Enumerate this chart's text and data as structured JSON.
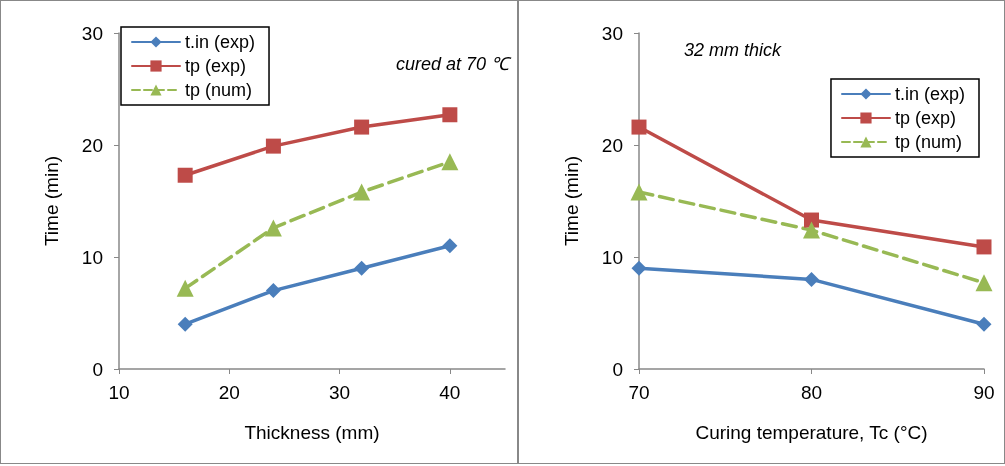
{
  "chart_data": [
    {
      "type": "line",
      "xlabel": "Thickness (mm)",
      "ylabel": "Time (min)",
      "x": [
        16,
        24,
        32,
        40
      ],
      "xlim": [
        10,
        45
      ],
      "xticks": [
        10,
        20,
        30,
        40
      ],
      "ylim": [
        0,
        30
      ],
      "yticks": [
        0,
        10,
        20,
        30
      ],
      "grid": false,
      "legend": "top left",
      "annotations": [
        "cured at 70 ℃"
      ],
      "series": [
        {
          "name": "t.in (exp)",
          "color": "#4a7ebb",
          "marker": "diamond",
          "line_style": "solid",
          "values": [
            4,
            7,
            9,
            11
          ]
        },
        {
          "name": "tp (exp)",
          "color": "#be4b48",
          "marker": "square",
          "line_style": "solid",
          "values": [
            17.3,
            19.9,
            21.6,
            22.7
          ]
        },
        {
          "name": "tp (num)",
          "color": "#98b954",
          "marker": "triangle",
          "line_style": "dashed",
          "values": [
            7.2,
            12.6,
            15.8,
            18.5
          ]
        }
      ]
    },
    {
      "type": "line",
      "xlabel": "Curing temperature, Tc (°C)",
      "ylabel": "Time (min)",
      "x": [
        70,
        80,
        90
      ],
      "xlim": [
        70,
        90
      ],
      "xticks": [
        70,
        80,
        90
      ],
      "ylim": [
        0,
        30
      ],
      "yticks": [
        0,
        10,
        20,
        30
      ],
      "grid": false,
      "legend": "top right",
      "annotations": [
        "32 mm thick"
      ],
      "series": [
        {
          "name": "t.in (exp)",
          "color": "#4a7ebb",
          "marker": "diamond",
          "line_style": "solid",
          "values": [
            9,
            8,
            4
          ]
        },
        {
          "name": "tp (exp)",
          "color": "#be4b48",
          "marker": "square",
          "line_style": "solid",
          "values": [
            21.6,
            13.3,
            10.9
          ]
        },
        {
          "name": "tp (num)",
          "color": "#98b954",
          "marker": "triangle",
          "line_style": "dashed",
          "values": [
            15.8,
            12.4,
            7.7
          ]
        }
      ]
    }
  ]
}
